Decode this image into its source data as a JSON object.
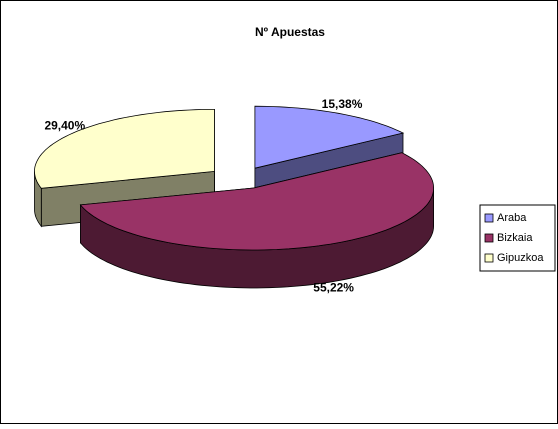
{
  "chart_data": {
    "type": "pie3d",
    "title": "Nº Apuestas",
    "categories": [
      "Araba",
      "Bizkaia",
      "Gipuzkoa"
    ],
    "values": [
      15.38,
      55.22,
      29.4
    ],
    "value_labels": [
      "15,38%",
      "55,22%",
      "29,40%"
    ],
    "colors": [
      "#9999ff",
      "#993366",
      "#ffffcc"
    ],
    "legend": "right"
  }
}
